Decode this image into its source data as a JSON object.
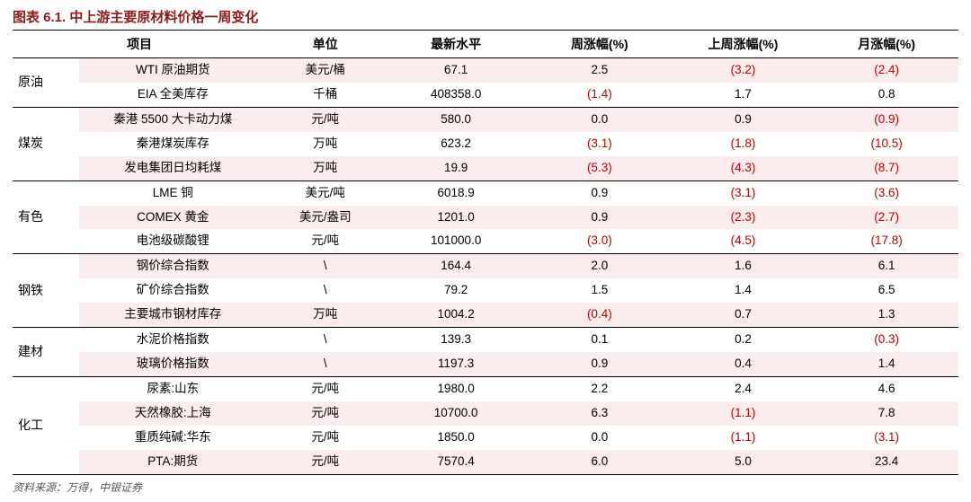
{
  "title": "图表 6.1. 中上游主要原材料价格一周变化",
  "source": "资料来源：万得，中银证券",
  "neg_color": "#c00000",
  "stripe_color": "#fbeded",
  "columns": [
    "项目",
    "单位",
    "最新水平",
    "周涨幅(%)",
    "上周涨幅(%)",
    "月涨幅(%)"
  ],
  "groups": [
    {
      "category": "原油",
      "rows": [
        {
          "item": "WTI 原油期货",
          "unit": "美元/桶",
          "latest": "67.1",
          "wk": "2.5",
          "pwk": "(3.2)",
          "mo": "(2.4)"
        },
        {
          "item": "EIA 全美库存",
          "unit": "千桶",
          "latest": "408358.0",
          "wk": "(1.4)",
          "pwk": "1.7",
          "mo": "0.8"
        }
      ]
    },
    {
      "category": "煤炭",
      "rows": [
        {
          "item": "秦港 5500 大卡动力煤",
          "unit": "元/吨",
          "latest": "580.0",
          "wk": "0.0",
          "pwk": "0.9",
          "mo": "(0.9)"
        },
        {
          "item": "秦港煤炭库存",
          "unit": "万吨",
          "latest": "623.2",
          "wk": "(3.1)",
          "pwk": "(1.8)",
          "mo": "(10.5)"
        },
        {
          "item": "发电集团日均耗煤",
          "unit": "万吨",
          "latest": "19.9",
          "wk": "(5.3)",
          "pwk": "(4.3)",
          "mo": "(8.7)"
        }
      ]
    },
    {
      "category": "有色",
      "rows": [
        {
          "item": "LME 铜",
          "unit": "美元/吨",
          "latest": "6018.9",
          "wk": "0.9",
          "pwk": "(3.1)",
          "mo": "(3.6)"
        },
        {
          "item": "COMEX 黄金",
          "unit": "美元/盎司",
          "latest": "1201.0",
          "wk": "0.9",
          "pwk": "(2.3)",
          "mo": "(2.7)"
        },
        {
          "item": "电池级碳酸锂",
          "unit": "元/吨",
          "latest": "101000.0",
          "wk": "(3.0)",
          "pwk": "(4.5)",
          "mo": "(17.8)"
        }
      ]
    },
    {
      "category": "钢铁",
      "rows": [
        {
          "item": "钢价综合指数",
          "unit": "\\",
          "latest": "164.4",
          "wk": "2.0",
          "pwk": "1.6",
          "mo": "6.1"
        },
        {
          "item": "矿价综合指数",
          "unit": "\\",
          "latest": "79.2",
          "wk": "1.5",
          "pwk": "1.4",
          "mo": "6.5"
        },
        {
          "item": "主要城市钢材库存",
          "unit": "万吨",
          "latest": "1004.2",
          "wk": "(0.4)",
          "pwk": "0.7",
          "mo": "1.3"
        }
      ]
    },
    {
      "category": "建材",
      "rows": [
        {
          "item": "水泥价格指数",
          "unit": "\\",
          "latest": "139.3",
          "wk": "0.1",
          "pwk": "0.2",
          "mo": "(0.3)"
        },
        {
          "item": "玻璃价格指数",
          "unit": "\\",
          "latest": "1197.3",
          "wk": "0.9",
          "pwk": "0.4",
          "mo": "1.4"
        }
      ]
    },
    {
      "category": "化工",
      "rows": [
        {
          "item": "尿素:山东",
          "unit": "元/吨",
          "latest": "1980.0",
          "wk": "2.2",
          "pwk": "2.4",
          "mo": "4.6"
        },
        {
          "item": "天然橡胶:上海",
          "unit": "元/吨",
          "latest": "10700.0",
          "wk": "6.3",
          "pwk": "(1.1)",
          "mo": "7.8"
        },
        {
          "item": "重质纯碱:华东",
          "unit": "元/吨",
          "latest": "1850.0",
          "wk": "0.0",
          "pwk": "(1.1)",
          "mo": "(3.1)"
        },
        {
          "item": "PTA:期货",
          "unit": "元/吨",
          "latest": "7570.4",
          "wk": "6.0",
          "pwk": "5.0",
          "mo": "23.4"
        }
      ]
    }
  ]
}
